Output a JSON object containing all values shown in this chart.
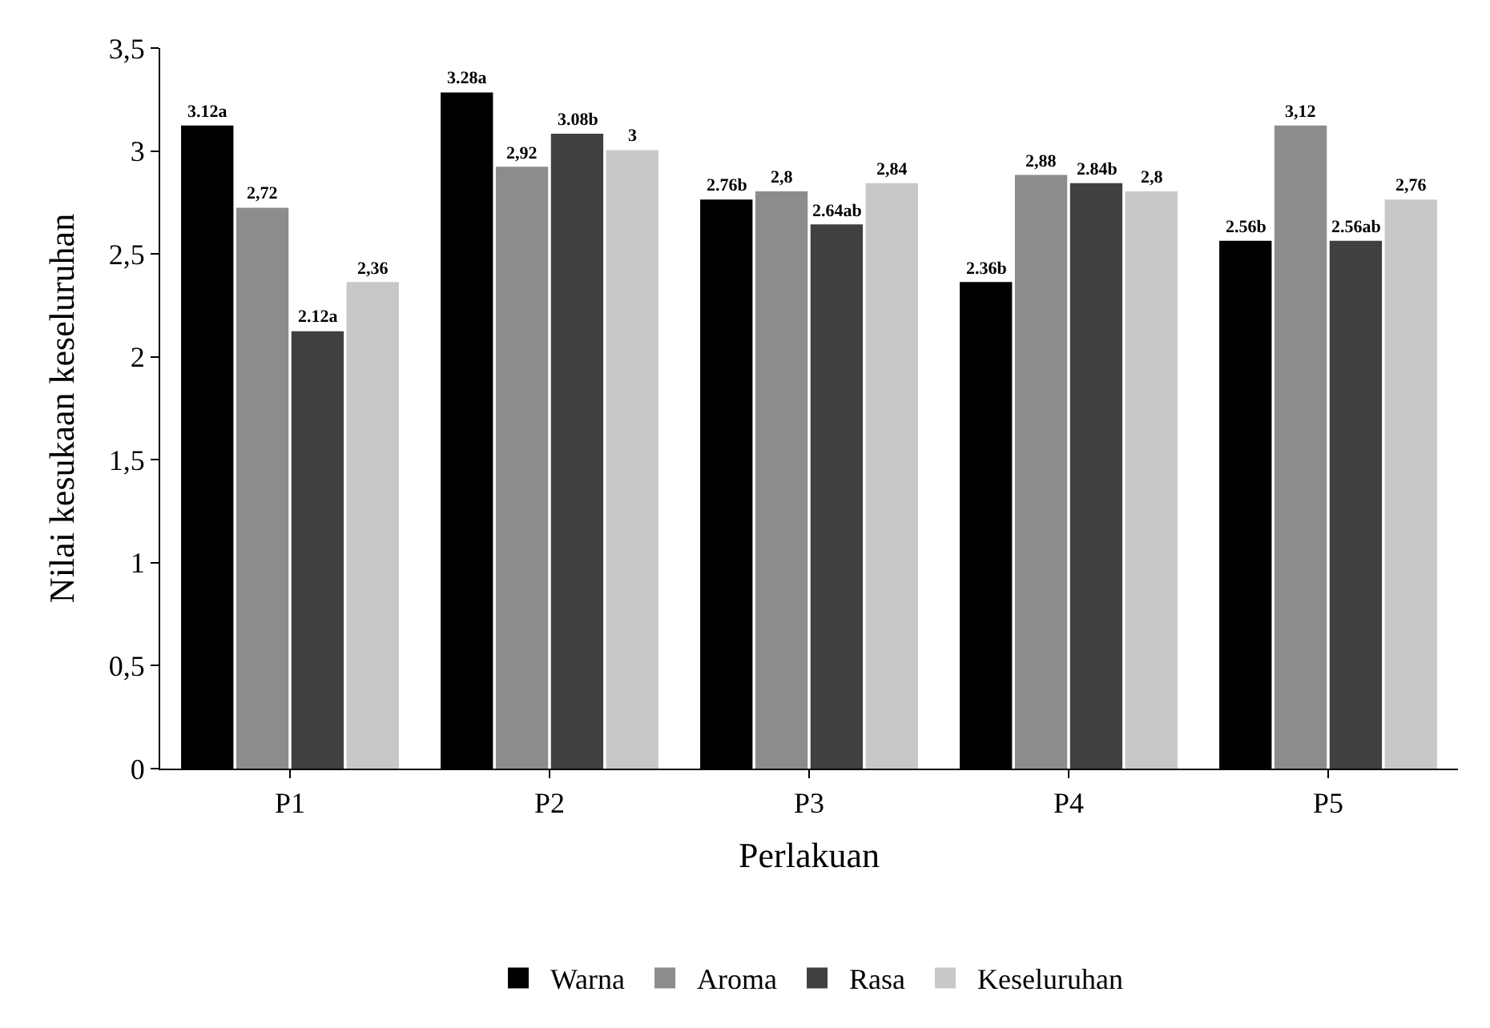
{
  "chart_data": {
    "type": "bar",
    "xlabel": "Perlakuan",
    "ylabel": "Nilai kesukaan keseluruhan",
    "categories": [
      "P1",
      "P2",
      "P3",
      "P4",
      "P5"
    ],
    "series": [
      {
        "name": "Warna",
        "color": "#000000",
        "values": [
          3.12,
          3.28,
          2.76,
          2.36,
          2.56
        ],
        "value_labels": [
          "3.12a",
          "3.28a",
          "2.76b",
          "2.36b",
          "2.56b"
        ]
      },
      {
        "name": "Aroma",
        "color": "#8c8c8c",
        "values": [
          2.72,
          2.92,
          2.8,
          2.88,
          3.12
        ],
        "value_labels": [
          "2,72",
          "2,92",
          "2,8",
          "2,88",
          "3,12"
        ]
      },
      {
        "name": "Rasa",
        "color": "#404040",
        "values": [
          2.12,
          3.08,
          2.64,
          2.84,
          2.56
        ],
        "value_labels": [
          "2.12a",
          "3.08b",
          "2.64ab",
          "2.84b",
          "2.56ab"
        ]
      },
      {
        "name": "Keseluruhan",
        "color": "#c8c8c8",
        "values": [
          2.36,
          3,
          2.84,
          2.8,
          2.76
        ],
        "value_labels": [
          "2,36",
          "3",
          "2,84",
          "2,8",
          "2,76"
        ]
      }
    ],
    "ylim": [
      0,
      3.5
    ],
    "yticks": [
      0,
      {
        "value": 0.5,
        "label": "0,5"
      },
      1,
      {
        "value": 1.5,
        "label": "1,5"
      },
      2,
      {
        "value": 2.5,
        "label": "2,5"
      },
      3,
      {
        "value": 3.5,
        "label": "3,5"
      }
    ],
    "grid": false,
    "legend": "bottom"
  }
}
